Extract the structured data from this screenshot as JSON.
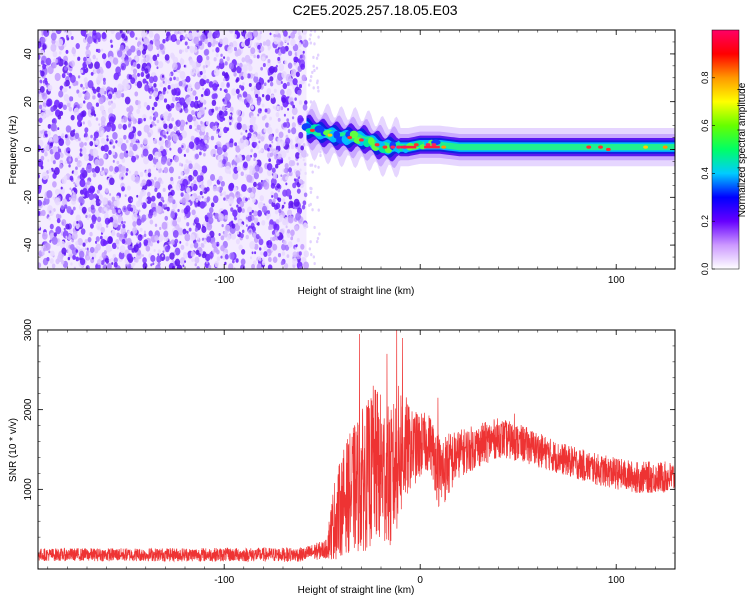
{
  "title": "C2E5.2025.257.18.05.E03",
  "chart_data": [
    {
      "type": "heatmap",
      "xlabel": "Height of straight line (km)",
      "ylabel": "Frequency (Hz)",
      "xlim": [
        -195,
        130
      ],
      "ylim": [
        -50,
        50
      ],
      "x_ticks": [
        -100,
        0,
        100
      ],
      "x_tick_labels": [
        "-100",
        "",
        "100"
      ],
      "y_ticks": [
        -40,
        -20,
        0,
        20,
        40
      ],
      "y_tick_labels": [
        "-40",
        "-20",
        "0",
        "20",
        "40"
      ],
      "noise_region_x": [
        -195,
        -58
      ],
      "signal_start_x": -58,
      "signal_ridge": [
        {
          "x": -58,
          "f": 9
        },
        {
          "x": -50,
          "f": 7
        },
        {
          "x": -44,
          "f": 6
        },
        {
          "x": -38,
          "f": 5
        },
        {
          "x": -33,
          "f": 5
        },
        {
          "x": -27,
          "f": 4
        },
        {
          "x": -22,
          "f": 2
        },
        {
          "x": -18,
          "f": 1
        },
        {
          "x": -12,
          "f": 1
        },
        {
          "x": -6,
          "f": 1
        },
        {
          "x": 0,
          "f": 2
        },
        {
          "x": 10,
          "f": 2
        },
        {
          "x": 20,
          "f": 1
        },
        {
          "x": 40,
          "f": 1
        },
        {
          "x": 60,
          "f": 1
        },
        {
          "x": 85,
          "f": 1
        },
        {
          "x": 100,
          "f": 1
        },
        {
          "x": 130,
          "f": 1
        }
      ],
      "colorbar": {
        "label": "Normalized spectral amplitude",
        "ticks": [
          0.0,
          0.2,
          0.4,
          0.6,
          0.8
        ],
        "tick_labels": [
          "0.0",
          "0.2",
          "0.4",
          "0.6",
          "0.8"
        ],
        "range": [
          0,
          1
        ],
        "colors": [
          "#ffffff",
          "#cc99ff",
          "#6600ff",
          "#0000ff",
          "#00ccff",
          "#00ff66",
          "#66ff00",
          "#ffff00",
          "#ff9900",
          "#ff0000",
          "#ff0066"
        ]
      }
    },
    {
      "type": "line",
      "xlabel": "Height of straight line (km)",
      "ylabel": "SNR (10 * v/v)",
      "xlim": [
        -195,
        130
      ],
      "ylim": [
        0,
        3000
      ],
      "x_ticks": [
        -100,
        0,
        100
      ],
      "x_tick_labels": [
        "-100",
        "0",
        "100"
      ],
      "y_ticks": [
        1000,
        2000,
        3000
      ],
      "y_tick_labels": [
        "1000",
        "2000",
        "3000"
      ],
      "color": "#ee3333",
      "envelope": [
        {
          "x": -195,
          "mean": 180,
          "amp": 80
        },
        {
          "x": -60,
          "mean": 180,
          "amp": 90
        },
        {
          "x": -48,
          "mean": 250,
          "amp": 120
        },
        {
          "x": -44,
          "mean": 600,
          "amp": 500
        },
        {
          "x": -38,
          "mean": 900,
          "amp": 700
        },
        {
          "x": -30,
          "mean": 1100,
          "amp": 900
        },
        {
          "x": -22,
          "mean": 1300,
          "amp": 1000
        },
        {
          "x": -15,
          "mean": 1100,
          "amp": 900
        },
        {
          "x": -10,
          "mean": 1500,
          "amp": 900
        },
        {
          "x": -5,
          "mean": 1500,
          "amp": 500
        },
        {
          "x": 5,
          "mean": 1600,
          "amp": 350
        },
        {
          "x": 10,
          "mean": 1200,
          "amp": 500
        },
        {
          "x": 20,
          "mean": 1450,
          "amp": 300
        },
        {
          "x": 40,
          "mean": 1650,
          "amp": 250
        },
        {
          "x": 55,
          "mean": 1550,
          "amp": 230
        },
        {
          "x": 70,
          "mean": 1400,
          "amp": 200
        },
        {
          "x": 90,
          "mean": 1250,
          "amp": 200
        },
        {
          "x": 110,
          "mean": 1150,
          "amp": 200
        },
        {
          "x": 130,
          "mean": 1150,
          "amp": 200
        }
      ],
      "peaks": [
        {
          "x": -31,
          "y": 2950
        },
        {
          "x": -24,
          "y": 2300
        },
        {
          "x": -17,
          "y": 2700
        },
        {
          "x": -12,
          "y": 3000
        },
        {
          "x": -9,
          "y": 2900
        },
        {
          "x": 9,
          "y": 2150
        },
        {
          "x": 48,
          "y": 1950
        }
      ]
    }
  ]
}
